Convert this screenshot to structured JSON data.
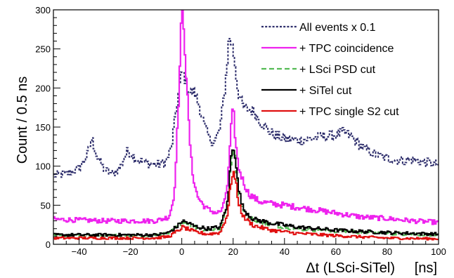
{
  "chart_data": {
    "type": "line",
    "title": "",
    "xlabel": "Δt (LSci-SiTel)     [ns]",
    "ylabel": "Count / 0.5 ns",
    "xlim": [
      -50,
      100
    ],
    "ylim": [
      0,
      300
    ],
    "x_ticks": [
      -40,
      -20,
      0,
      20,
      40,
      60,
      80,
      100
    ],
    "y_ticks": [
      0,
      50,
      100,
      150,
      200,
      250,
      300
    ],
    "grid": false,
    "legend_position": "top-right",
    "series": [
      {
        "name": "All events x 0.1",
        "color": "#2d2d6b",
        "dash": "dotted",
        "points": [
          [
            -50,
            88
          ],
          [
            -45,
            90
          ],
          [
            -40,
            97
          ],
          [
            -37,
            112
          ],
          [
            -35,
            135
          ],
          [
            -33,
            112
          ],
          [
            -30,
            95
          ],
          [
            -27,
            90
          ],
          [
            -24,
            98
          ],
          [
            -21,
            120
          ],
          [
            -18,
            110
          ],
          [
            -15,
            105
          ],
          [
            -12,
            103
          ],
          [
            -9,
            102
          ],
          [
            -6,
            105
          ],
          [
            -4,
            125
          ],
          [
            -2,
            175
          ],
          [
            0,
            220
          ],
          [
            1,
            215
          ],
          [
            3,
            195
          ],
          [
            5,
            195
          ],
          [
            7,
            175
          ],
          [
            9,
            150
          ],
          [
            11,
            133
          ],
          [
            13,
            132
          ],
          [
            15,
            150
          ],
          [
            17,
            205
          ],
          [
            18.5,
            267
          ],
          [
            20,
            250
          ],
          [
            22,
            195
          ],
          [
            24,
            175
          ],
          [
            26,
            173
          ],
          [
            28,
            170
          ],
          [
            30,
            160
          ],
          [
            33,
            148
          ],
          [
            36,
            140
          ],
          [
            40,
            135
          ],
          [
            45,
            133
          ],
          [
            50,
            135
          ],
          [
            55,
            138
          ],
          [
            60,
            140
          ],
          [
            63,
            143
          ],
          [
            66,
            138
          ],
          [
            70,
            125
          ],
          [
            75,
            115
          ],
          [
            80,
            110
          ],
          [
            85,
            107
          ],
          [
            90,
            108
          ],
          [
            95,
            105
          ],
          [
            100,
            102
          ]
        ]
      },
      {
        "name": "+ TPC coincidence",
        "color": "#ee22ee",
        "dash": "solid",
        "points": [
          [
            -50,
            32
          ],
          [
            -40,
            31
          ],
          [
            -30,
            30
          ],
          [
            -20,
            30
          ],
          [
            -10,
            30
          ],
          [
            -5,
            35
          ],
          [
            -3,
            60
          ],
          [
            -1.5,
            160
          ],
          [
            -0.5,
            250
          ],
          [
            0,
            300
          ],
          [
            0.8,
            280
          ],
          [
            2,
            200
          ],
          [
            3,
            140
          ],
          [
            4,
            95
          ],
          [
            6,
            62
          ],
          [
            8,
            52
          ],
          [
            10,
            45
          ],
          [
            12,
            42
          ],
          [
            14,
            40
          ],
          [
            16,
            45
          ],
          [
            18,
            80
          ],
          [
            19,
            140
          ],
          [
            20,
            175
          ],
          [
            21,
            130
          ],
          [
            22,
            100
          ],
          [
            24,
            80
          ],
          [
            26,
            65
          ],
          [
            30,
            55
          ],
          [
            35,
            52
          ],
          [
            40,
            50
          ],
          [
            50,
            45
          ],
          [
            60,
            40
          ],
          [
            70,
            35
          ],
          [
            80,
            33
          ],
          [
            90,
            30
          ],
          [
            100,
            28
          ]
        ]
      },
      {
        "name": "+ LSci PSD cut",
        "color": "#55bb55",
        "dash": "dashed",
        "points": [
          [
            -50,
            11
          ],
          [
            -30,
            11
          ],
          [
            -10,
            11
          ],
          [
            -5,
            14
          ],
          [
            -1,
            24
          ],
          [
            0,
            28
          ],
          [
            2,
            27
          ],
          [
            5,
            22
          ],
          [
            10,
            18
          ],
          [
            15,
            20
          ],
          [
            18,
            50
          ],
          [
            19,
            100
          ],
          [
            20,
            125
          ],
          [
            21,
            105
          ],
          [
            22,
            70
          ],
          [
            24,
            42
          ],
          [
            28,
            30
          ],
          [
            35,
            25
          ],
          [
            45,
            20
          ],
          [
            60,
            17
          ],
          [
            80,
            14
          ],
          [
            100,
            12
          ]
        ]
      },
      {
        "name": "+ SiTel cut",
        "color": "#000000",
        "dash": "solid",
        "points": [
          [
            -50,
            12
          ],
          [
            -30,
            12
          ],
          [
            -10,
            12
          ],
          [
            -5,
            15
          ],
          [
            -1,
            25
          ],
          [
            0,
            30
          ],
          [
            2,
            28
          ],
          [
            5,
            23
          ],
          [
            10,
            20
          ],
          [
            15,
            22
          ],
          [
            18,
            55
          ],
          [
            19,
            105
          ],
          [
            20,
            130
          ],
          [
            21,
            110
          ],
          [
            22,
            72
          ],
          [
            24,
            45
          ],
          [
            28,
            32
          ],
          [
            35,
            27
          ],
          [
            45,
            22
          ],
          [
            60,
            18
          ],
          [
            80,
            15
          ],
          [
            100,
            13
          ]
        ]
      },
      {
        "name": "+ TPC single S2 cut",
        "color": "#e01010",
        "dash": "solid",
        "points": [
          [
            -50,
            8
          ],
          [
            -30,
            8
          ],
          [
            -10,
            8
          ],
          [
            -5,
            10
          ],
          [
            -1,
            18
          ],
          [
            0,
            22
          ],
          [
            2,
            20
          ],
          [
            5,
            16
          ],
          [
            10,
            13
          ],
          [
            15,
            15
          ],
          [
            18,
            40
          ],
          [
            19,
            75
          ],
          [
            20,
            95
          ],
          [
            21,
            80
          ],
          [
            22,
            55
          ],
          [
            24,
            35
          ],
          [
            28,
            24
          ],
          [
            35,
            18
          ],
          [
            45,
            14
          ],
          [
            60,
            11
          ],
          [
            80,
            8
          ],
          [
            100,
            7
          ]
        ]
      }
    ]
  }
}
